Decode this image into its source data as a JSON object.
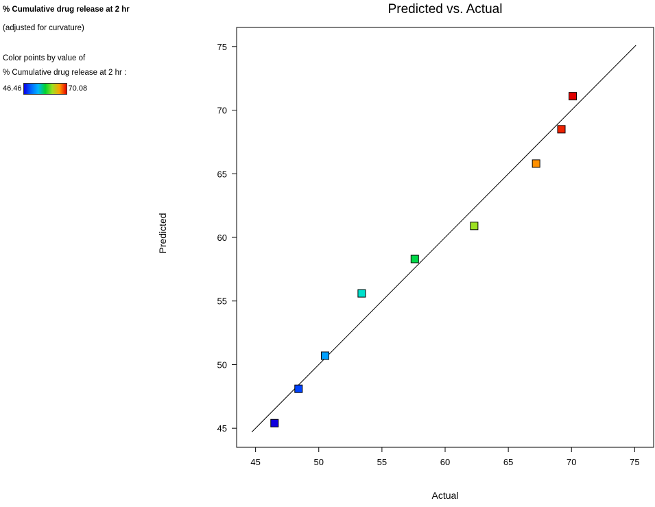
{
  "legend": {
    "title": "% Cumulative drug release at 2 hr",
    "subtitle": "(adjusted for curvature)",
    "color_by_line1": "Color points by value of",
    "color_by_line2": "% Cumulative drug release at 2 hr :",
    "min_value": "46.46",
    "max_value": "70.08",
    "gradient_stops": [
      "#0a00e6",
      "#0066ff",
      "#00b4ff",
      "#00d22d",
      "#9ce022",
      "#ffa000",
      "#e60000"
    ]
  },
  "chart_data": {
    "type": "scatter",
    "title": "Predicted vs. Actual",
    "xlabel": "Actual",
    "ylabel": "Predicted",
    "xlim": [
      43.5,
      76.5
    ],
    "ylim": [
      43.5,
      76.5
    ],
    "xticks": [
      45,
      50,
      55,
      60,
      65,
      70,
      75
    ],
    "yticks": [
      45,
      50,
      55,
      60,
      65,
      70,
      75
    ],
    "grid": false,
    "legend_position": "top-left",
    "identity_line": {
      "from": 44.7,
      "to": 75.1
    },
    "marker": "square",
    "points": [
      {
        "actual": 46.5,
        "predicted": 45.4,
        "color": "#1000dd"
      },
      {
        "actual": 48.4,
        "predicted": 48.1,
        "color": "#0044ff"
      },
      {
        "actual": 50.5,
        "predicted": 50.7,
        "color": "#00a0ff"
      },
      {
        "actual": 53.4,
        "predicted": 55.6,
        "color": "#00e0cc"
      },
      {
        "actual": 57.6,
        "predicted": 58.3,
        "color": "#00d848"
      },
      {
        "actual": 62.3,
        "predicted": 60.9,
        "color": "#9ce022"
      },
      {
        "actual": 67.2,
        "predicted": 65.8,
        "color": "#ff9000"
      },
      {
        "actual": 69.2,
        "predicted": 68.5,
        "color": "#ee2200"
      },
      {
        "actual": 70.1,
        "predicted": 71.1,
        "color": "#e00000"
      }
    ]
  }
}
